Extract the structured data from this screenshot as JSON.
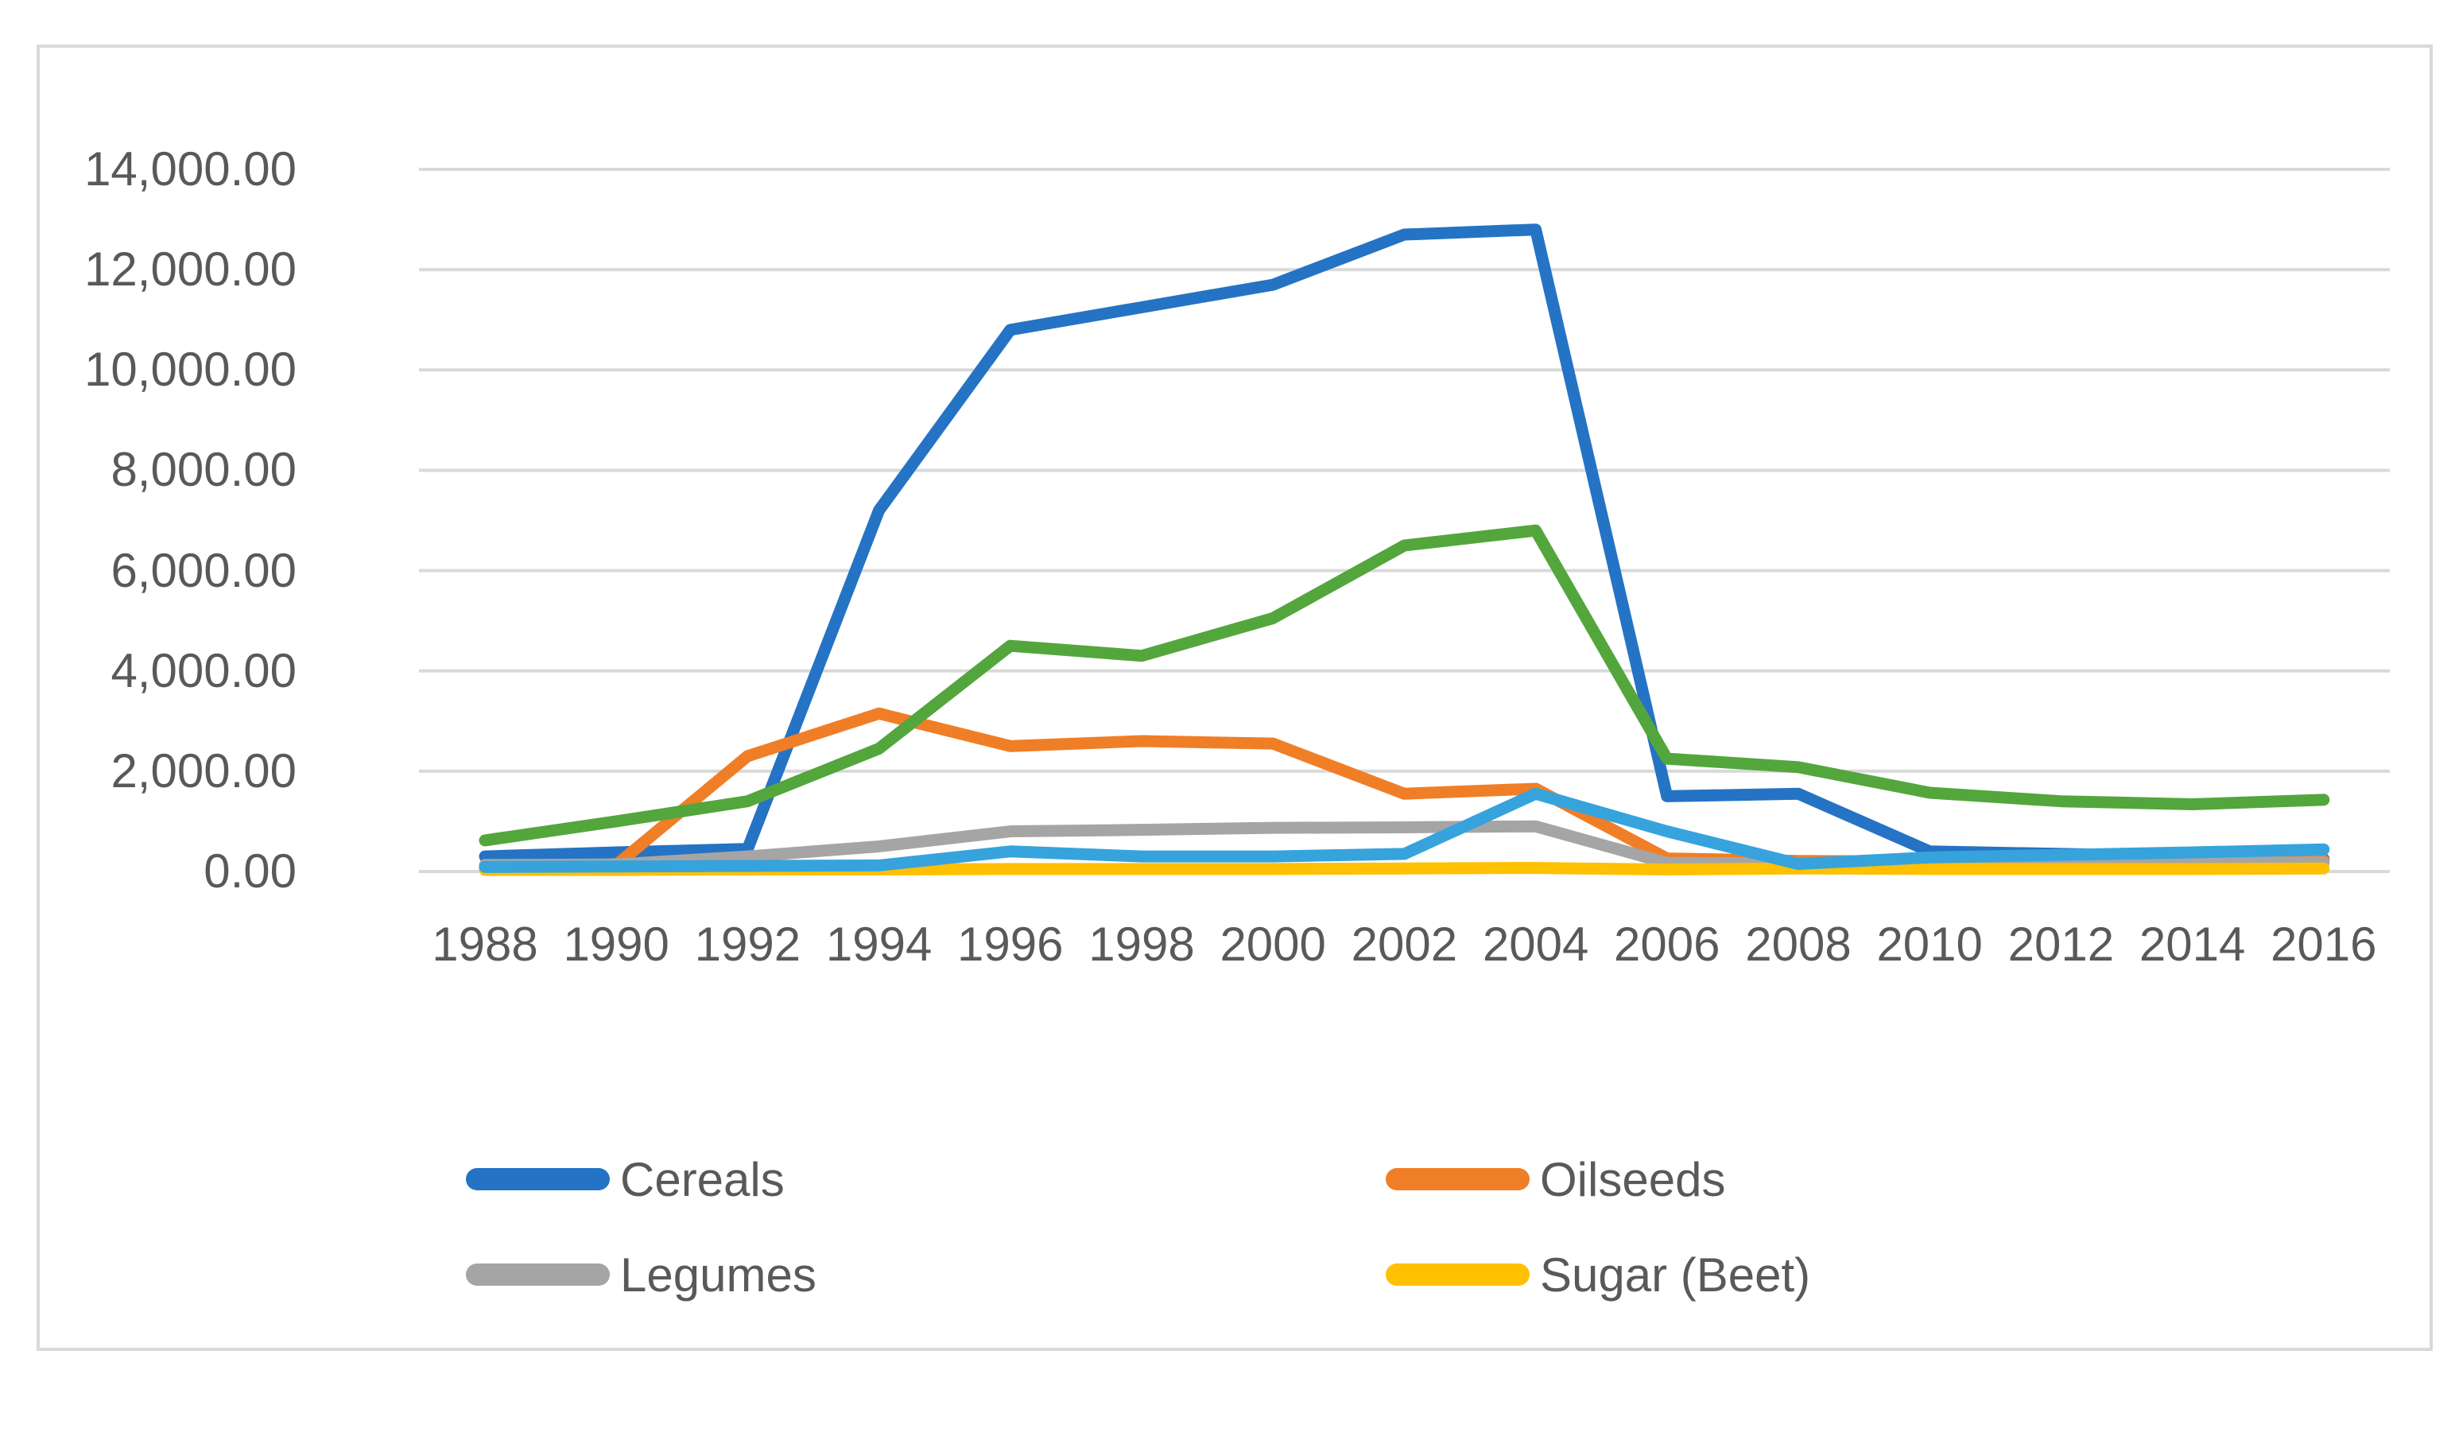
{
  "chart_data": {
    "type": "line",
    "title": "",
    "xlabel": "",
    "ylabel": "",
    "x": [
      1988,
      1990,
      1992,
      1994,
      1996,
      1998,
      2000,
      2002,
      2004,
      2006,
      2008,
      2010,
      2012,
      2014,
      2016
    ],
    "x_tick_labels": [
      "1988",
      "1990",
      "1992",
      "1994",
      "1996",
      "1998",
      "2000",
      "2002",
      "2004",
      "2006",
      "2008",
      "2010",
      "2012",
      "2014",
      "2016"
    ],
    "y_tick_labels": [
      "0.00",
      "2,000.00",
      "4,000.00",
      "6,000.00",
      "8,000.00",
      "10,000.00",
      "12,000.00",
      "14,000.00"
    ],
    "ylim": [
      0,
      14000
    ],
    "y_tick_step": 2000,
    "grid": "horizontal",
    "legend_position": "bottom",
    "series": [
      {
        "name": "Cereals",
        "color": "#2573C4",
        "legend_visible": true,
        "values": [
          300,
          380,
          450,
          7200,
          10800,
          11250,
          11700,
          12700,
          12800,
          1500,
          1550,
          400,
          350,
          300,
          250
        ]
      },
      {
        "name": "Oilseeds",
        "color": "#F07E27",
        "legend_visible": true,
        "values": [
          80,
          130,
          2300,
          3150,
          2500,
          2600,
          2550,
          1550,
          1650,
          260,
          210,
          200,
          200,
          210,
          220
        ]
      },
      {
        "name": "Legumes",
        "color": "#A5A5A5",
        "legend_visible": true,
        "values": [
          130,
          140,
          300,
          500,
          800,
          830,
          870,
          880,
          900,
          170,
          160,
          160,
          170,
          170,
          180
        ]
      },
      {
        "name": "Sugar (Beet)",
        "color": "#FFC001",
        "legend_visible": true,
        "values": [
          30,
          30,
          40,
          40,
          50,
          50,
          50,
          60,
          70,
          40,
          60,
          50,
          50,
          50,
          60
        ]
      },
      {
        "name": "",
        "color": "#36A3DC",
        "legend_visible": false,
        "values": [
          90,
          100,
          110,
          120,
          400,
          300,
          300,
          350,
          1550,
          800,
          150,
          280,
          330,
          380,
          440
        ]
      },
      {
        "name": "",
        "color": "#53A63C",
        "legend_visible": false,
        "values": [
          620,
          1000,
          1400,
          2450,
          4500,
          4300,
          5050,
          6500,
          6800,
          2250,
          2080,
          1570,
          1400,
          1340,
          1430
        ]
      }
    ]
  },
  "legend": {
    "items": [
      {
        "label": "Cereals",
        "color": "#2573C4"
      },
      {
        "label": "Oilseeds",
        "color": "#F07E27"
      },
      {
        "label": "Legumes",
        "color": "#A5A5A5"
      },
      {
        "label": "Sugar (Beet)",
        "color": "#FFC001"
      }
    ]
  },
  "styles": {
    "gridline_color": "#D9D9D9",
    "frame_border_color": "#D9D9D9",
    "axis_text_color": "#595959",
    "background_color": "#FFFFFF"
  }
}
